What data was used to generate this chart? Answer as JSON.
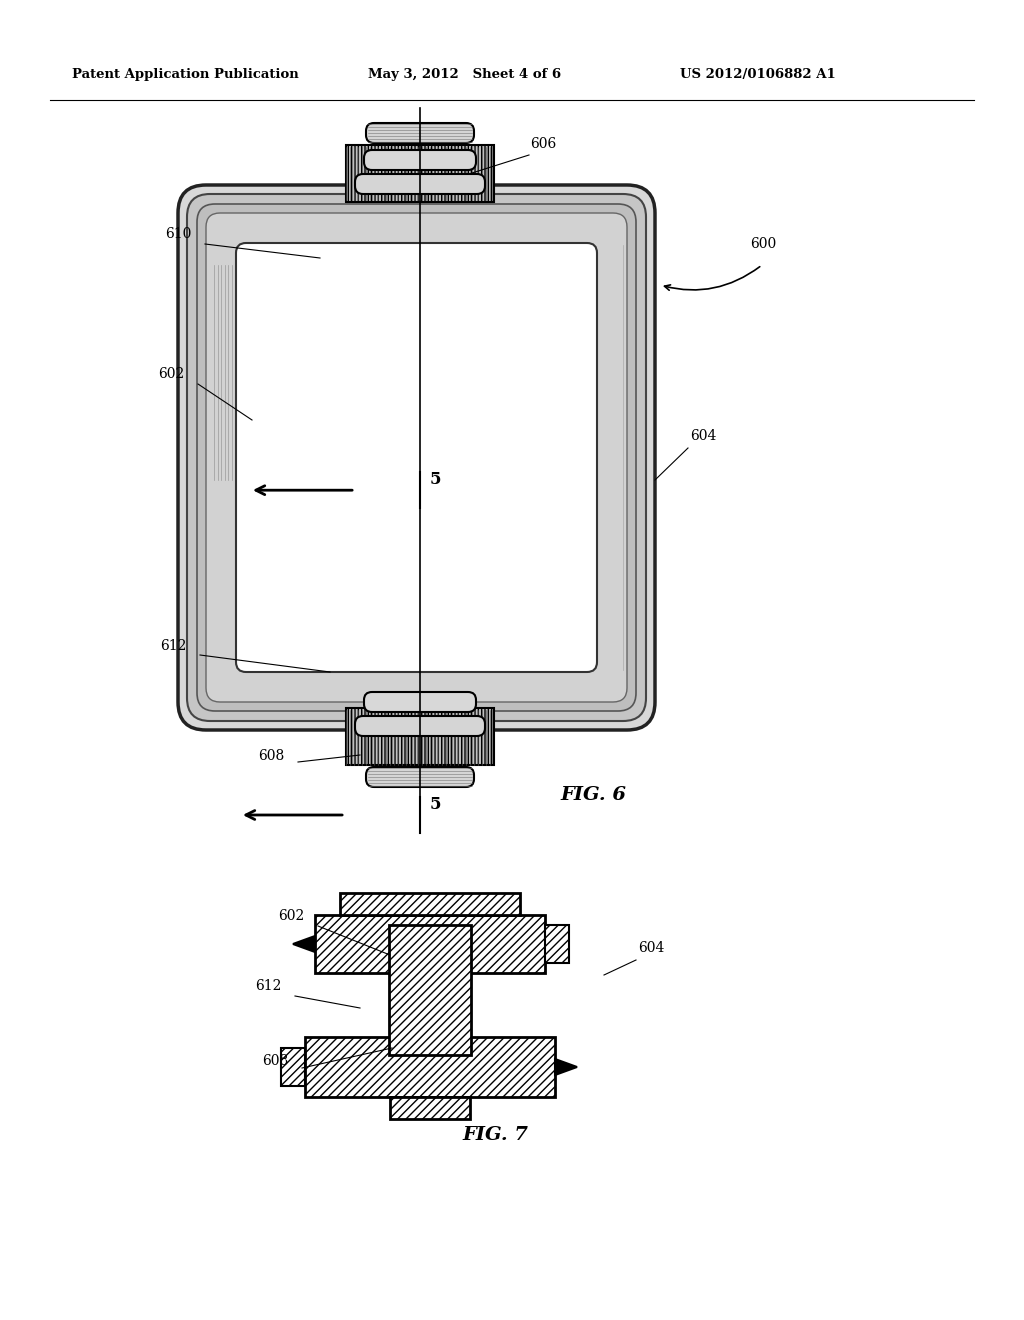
{
  "header_left": "Patent Application Publication",
  "header_mid": "May 3, 2012   Sheet 4 of 6",
  "header_right": "US 2012/0106882 A1",
  "fig6_label": "FIG. 6",
  "fig7_label": "FIG. 7",
  "bg_color": "#ffffff"
}
